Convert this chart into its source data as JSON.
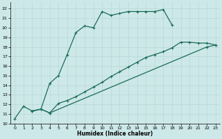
{
  "xlabel": "Humidex (Indice chaleur)",
  "background_color": "#cde8e8",
  "grid_color": "#b8d8d8",
  "line_color": "#1a6b5a",
  "xlim": [
    -0.5,
    23.5
  ],
  "ylim": [
    10,
    22.7
  ],
  "xticks": [
    0,
    1,
    2,
    3,
    4,
    5,
    6,
    7,
    8,
    9,
    10,
    11,
    12,
    13,
    14,
    15,
    16,
    17,
    18,
    19,
    20,
    21,
    22,
    23
  ],
  "yticks": [
    10,
    11,
    12,
    13,
    14,
    15,
    16,
    17,
    18,
    19,
    20,
    21,
    22
  ],
  "line1_x": [
    0,
    1,
    2,
    3,
    4,
    5,
    6,
    7,
    8,
    9,
    10,
    11,
    12,
    13,
    14,
    15,
    16,
    17,
    18
  ],
  "line1_y": [
    10.5,
    11.8,
    11.3,
    11.5,
    14.2,
    15.0,
    17.2,
    19.5,
    20.2,
    20.0,
    21.7,
    21.3,
    21.5,
    21.7,
    21.7,
    21.7,
    21.7,
    21.9,
    20.3
  ],
  "line2_x": [
    2,
    3,
    4,
    5,
    6,
    7,
    8,
    9,
    10,
    11,
    12,
    13,
    14,
    15,
    16,
    17,
    18,
    19,
    20,
    21,
    22,
    23
  ],
  "line2_y": [
    11.3,
    11.5,
    11.1,
    12.1,
    12.4,
    12.8,
    13.3,
    13.8,
    14.3,
    14.9,
    15.4,
    15.9,
    16.4,
    16.9,
    17.2,
    17.5,
    17.9,
    18.5,
    18.5,
    18.4,
    18.4,
    18.2
  ],
  "line3_x": [
    2,
    3,
    4,
    22,
    23
  ],
  "line3_y": [
    11.3,
    11.5,
    11.1,
    18.0,
    18.2
  ],
  "markersize": 2.5,
  "linewidth": 0.9
}
